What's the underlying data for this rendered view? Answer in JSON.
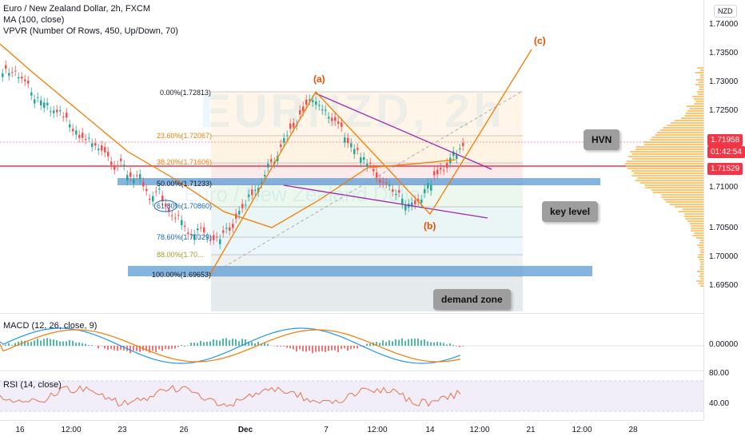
{
  "legend": {
    "symbol": "Euro / New Zealand Dollar, 2h, FXCM",
    "ma": "MA (100, close)",
    "vpvr": "VPVR (Number Of Rows, 450, Up/Down, 70)",
    "macd": "MACD (12, 26, close, 9)",
    "rsi": "RSI (14, close)"
  },
  "watermark": {
    "symbol": "EURNZD, 2h",
    "name": "Euro / New Zealand Dollar"
  },
  "currency_button": "NZD",
  "price_scale": [
    "1.74000",
    "1.73500",
    "1.73000",
    "1.72500",
    "1.72000",
    "1.71500",
    "1.71000",
    "1.70500",
    "1.70000",
    "1.69500"
  ],
  "price_tags": {
    "last_price": "1.71958",
    "countdown": "01:42:54",
    "level": "1.71529"
  },
  "macd_scale": [
    "0.00000"
  ],
  "rsi_scale": [
    "80.00",
    "40.00"
  ],
  "time_axis": [
    "16",
    "12:00",
    "23",
    "26",
    "Dec",
    "7",
    "12:00",
    "14",
    "12:00",
    "21",
    "12:00",
    "28"
  ],
  "fib_levels": [
    {
      "label": "0.00%(1.72813)",
      "color": "#787b86"
    },
    {
      "label": "23.60%(1.72067)",
      "color": "#f57c00"
    },
    {
      "label": "38.20%(1.71606)",
      "color": "#f57c00"
    },
    {
      "label": "50.00%(1.71233)",
      "color": "#787b86"
    },
    {
      "label": "61.80%(1.70860)",
      "color": "#1565c0"
    },
    {
      "label": "78.60%(1.70329)",
      "color": "#1565c0"
    },
    {
      "label": "88.00%(1.70...",
      "color": "#9e9d24"
    },
    {
      "label": "100.00%(1.69653)",
      "color": "#787b86"
    }
  ],
  "waves": [
    "(a)",
    "(b)",
    "(c)"
  ],
  "callouts": {
    "hvn": "HVN",
    "key_level": "key level",
    "demand_zone": "demand zone"
  },
  "colors": {
    "up": "#26a69a",
    "down": "#ef5350",
    "ma": "#f57c00",
    "level_line": "#f23645",
    "zone": "#5b9bd5",
    "macd": "#2196f3",
    "signal": "#f57c00",
    "rsi": "#e6744a"
  }
}
